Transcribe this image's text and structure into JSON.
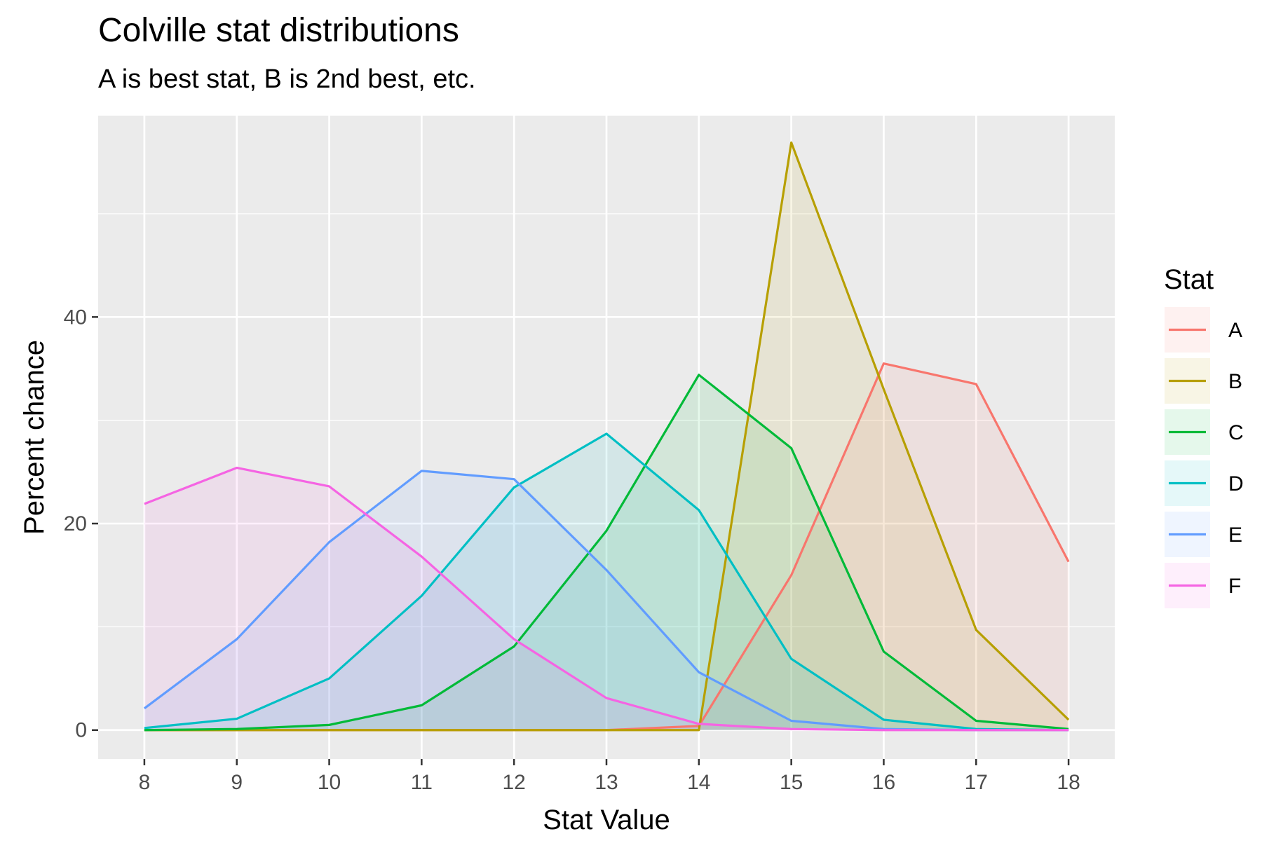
{
  "chart_data": {
    "type": "area",
    "title": "Colville stat distributions",
    "subtitle": "A is best stat, B is 2nd best, etc.",
    "xlabel": "Stat Value",
    "ylabel": "Percent chance",
    "x": [
      8,
      9,
      10,
      11,
      12,
      13,
      14,
      15,
      16,
      17,
      18
    ],
    "xlim": [
      7.5,
      18.5
    ],
    "ylim": [
      -2.8,
      59.5
    ],
    "yticks": [
      0,
      20,
      40
    ],
    "y_minor_grid": [
      10,
      30,
      50
    ],
    "grid": true,
    "legend_title": "Stat",
    "legend_position": "right",
    "series": [
      {
        "name": "A",
        "color": "#F8766D",
        "values": [
          0,
          0,
          0,
          0,
          0,
          0,
          0.4,
          15.0,
          35.5,
          33.5,
          16.3
        ]
      },
      {
        "name": "B",
        "color": "#B79F00",
        "values": [
          0,
          0,
          0,
          0,
          0,
          0,
          0,
          56.9,
          33.0,
          9.7,
          1.0
        ]
      },
      {
        "name": "C",
        "color": "#00BA38",
        "values": [
          0,
          0.1,
          0.5,
          2.4,
          8.1,
          19.3,
          34.4,
          27.3,
          7.6,
          0.9,
          0.1
        ]
      },
      {
        "name": "D",
        "color": "#00BFC4",
        "values": [
          0.2,
          1.1,
          5.0,
          13.0,
          23.5,
          28.7,
          21.3,
          6.9,
          1.0,
          0.1,
          0
        ]
      },
      {
        "name": "E",
        "color": "#619CFF",
        "values": [
          2.1,
          8.8,
          18.2,
          25.1,
          24.3,
          15.5,
          5.6,
          0.9,
          0.1,
          0,
          0
        ]
      },
      {
        "name": "F",
        "color": "#F564E3",
        "values": [
          21.9,
          25.4,
          23.6,
          16.8,
          8.8,
          3.1,
          0.6,
          0.1,
          0,
          0,
          0
        ]
      }
    ]
  }
}
